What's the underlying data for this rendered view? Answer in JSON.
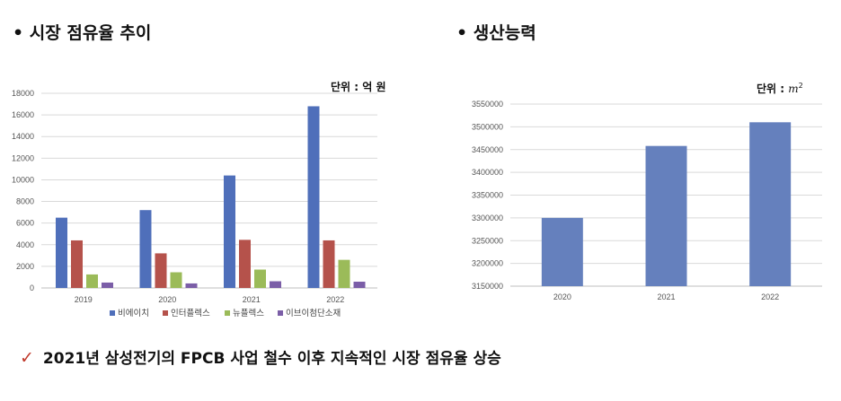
{
  "left_section": {
    "heading": "• 시장 점유율 추이",
    "unit": "단위 : 억 원"
  },
  "right_section": {
    "heading": "• 생산능력",
    "unit_prefix": "단위 : ",
    "unit_symbol": "m",
    "unit_sup": "2"
  },
  "conclusion": {
    "icon": "check-icon",
    "text": "2021년 삼성전기의 FPCB 사업 철수 이후 지속적인 시장 점유율 상승"
  },
  "colors": {
    "blue": "#4f6fba",
    "red": "#b5524b",
    "green": "#9bbb59",
    "purple": "#7b5ea7",
    "cap_bar": "#6580bd"
  },
  "chart_data": [
    {
      "type": "bar",
      "categories": [
        "2019",
        "2020",
        "2021",
        "2022"
      ],
      "series": [
        {
          "name": "비에이치",
          "values": [
            6500,
            7200,
            10400,
            16800
          ]
        },
        {
          "name": "인터플렉스",
          "values": [
            4400,
            3200,
            4450,
            4400
          ]
        },
        {
          "name": "뉴플렉스",
          "values": [
            1250,
            1450,
            1700,
            2600
          ]
        },
        {
          "name": "이브이첨단소재",
          "values": [
            500,
            420,
            620,
            580
          ]
        }
      ],
      "ylim": [
        0,
        18000
      ],
      "yticks": [
        "0",
        "2000",
        "4000",
        "6000",
        "8000",
        "10000",
        "12000",
        "14000",
        "16000",
        "18000"
      ],
      "grid": true,
      "legend": "bottom"
    },
    {
      "type": "bar",
      "categories": [
        "2020",
        "2021",
        "2022"
      ],
      "values": [
        3300000,
        3458000,
        3510000
      ],
      "ylim": [
        3150000,
        3550000
      ],
      "yticks": [
        "3150000",
        "3200000",
        "3250000",
        "3300000",
        "3350000",
        "3400000",
        "3450000",
        "3500000",
        "3550000"
      ],
      "grid": true
    }
  ]
}
